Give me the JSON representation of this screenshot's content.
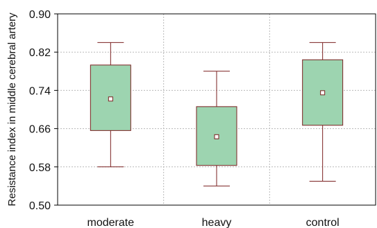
{
  "chart_data": {
    "type": "box",
    "title": "",
    "xlabel": "",
    "ylabel": "Resistance index in middle cerebral artery",
    "ylim": [
      0.5,
      0.9
    ],
    "yticks": [
      "0.50",
      "0.58",
      "0.66",
      "0.74",
      "0.82",
      "0.90"
    ],
    "categories": [
      "moderate",
      "heavy",
      "control"
    ],
    "boxes": [
      {
        "category": "moderate",
        "whisker_low": 0.58,
        "q1": 0.656,
        "median": 0.722,
        "q3": 0.793,
        "whisker_high": 0.84
      },
      {
        "category": "heavy",
        "whisker_low": 0.54,
        "q1": 0.583,
        "median": 0.643,
        "q3": 0.706,
        "whisker_high": 0.78
      },
      {
        "category": "control",
        "whisker_low": 0.55,
        "q1": 0.667,
        "median": 0.735,
        "q3": 0.804,
        "whisker_high": 0.84
      }
    ],
    "grid": true,
    "colors": {
      "box_fill": "#9dd4b0",
      "box_stroke": "#7a1f1f",
      "whisker": "#7a1f1f",
      "grid": "#b8b8b8",
      "median_marker_fill": "#ffffff"
    }
  }
}
